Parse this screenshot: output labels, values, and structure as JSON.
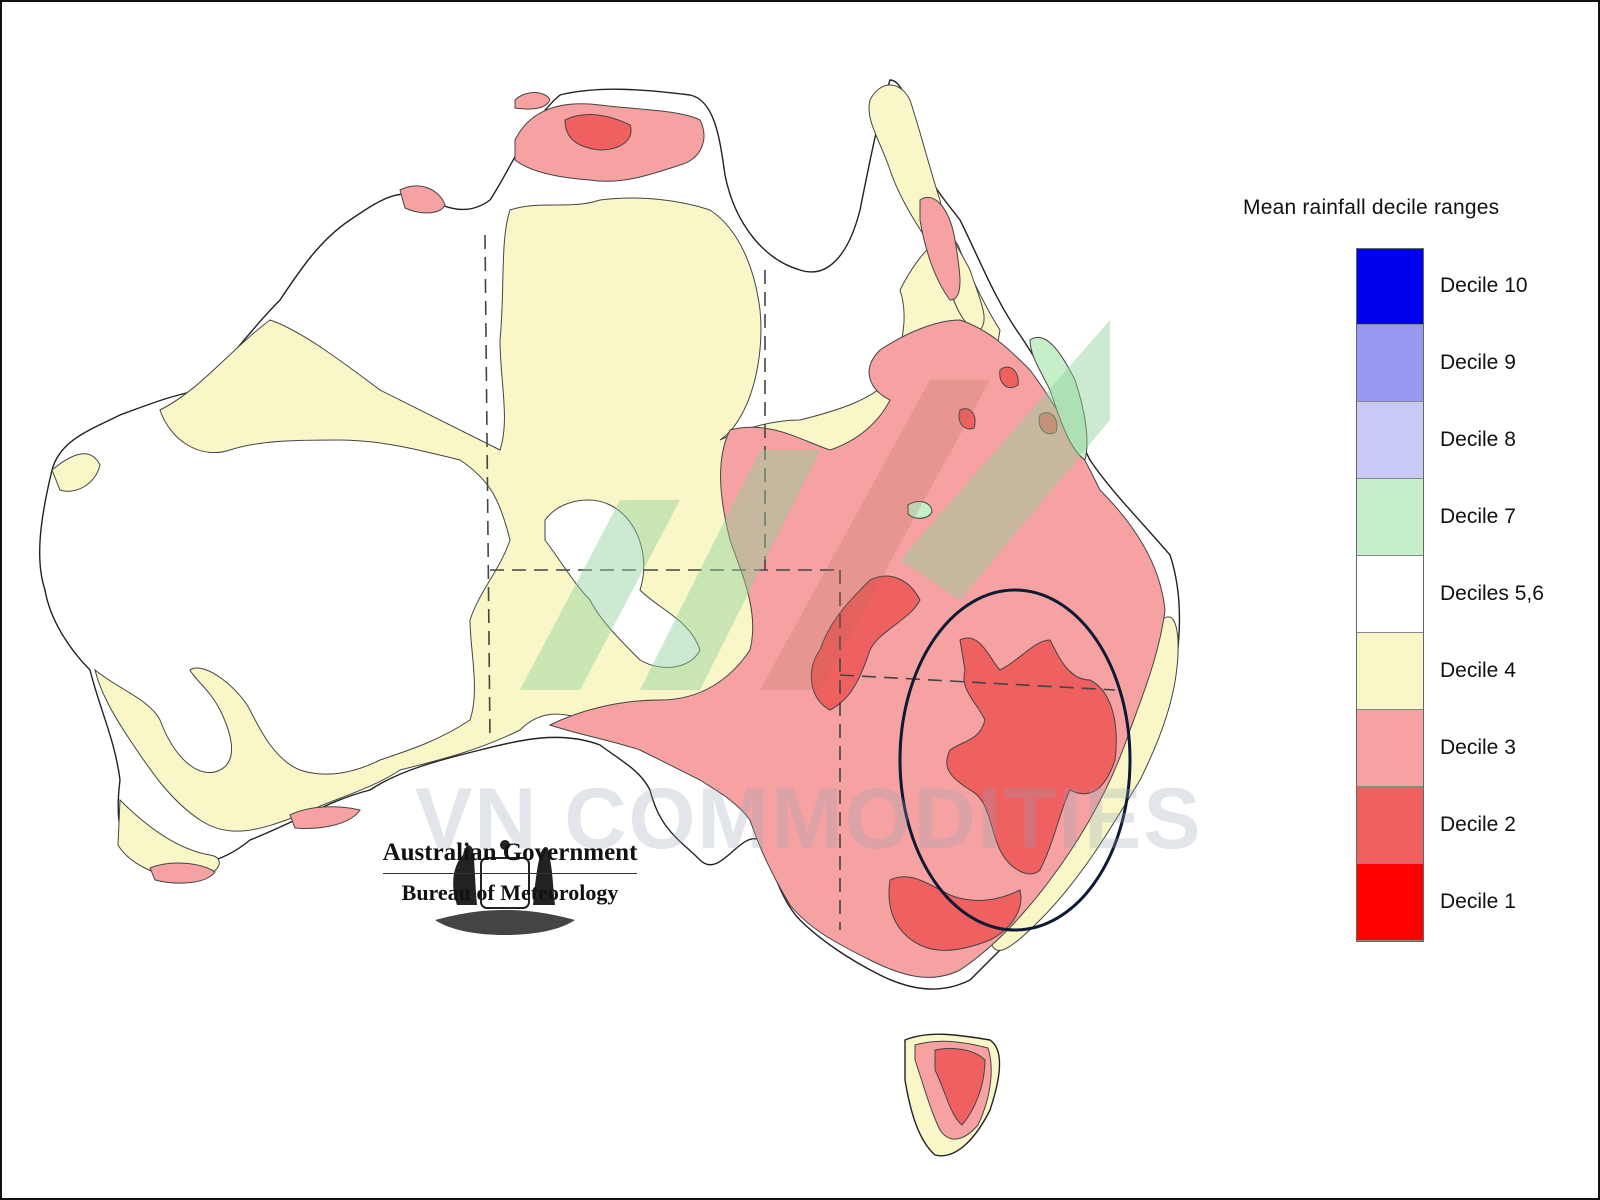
{
  "legend": {
    "title": "Mean rainfall decile ranges",
    "items": [
      {
        "label": "Decile 10",
        "color": "#0000ee"
      },
      {
        "label": "Decile 9",
        "color": "#9999f2"
      },
      {
        "label": "Decile 8",
        "color": "#c9c9f5"
      },
      {
        "label": "Decile 7",
        "color": "#c6efc9"
      },
      {
        "label": "Deciles 5,6",
        "color": "#ffffff"
      },
      {
        "label": "Decile 4",
        "color": "#f9f7c8"
      },
      {
        "label": "Decile 3",
        "color": "#f6a2a2"
      },
      {
        "label": "Decile 2",
        "color": "#ef6060"
      },
      {
        "label": "Decile 1",
        "color": "#ff0000"
      }
    ]
  },
  "logo": {
    "government": "Australian Government",
    "bureau": "Bureau of Meteorology"
  },
  "watermark": {
    "text": "VN COMMODITIES"
  }
}
